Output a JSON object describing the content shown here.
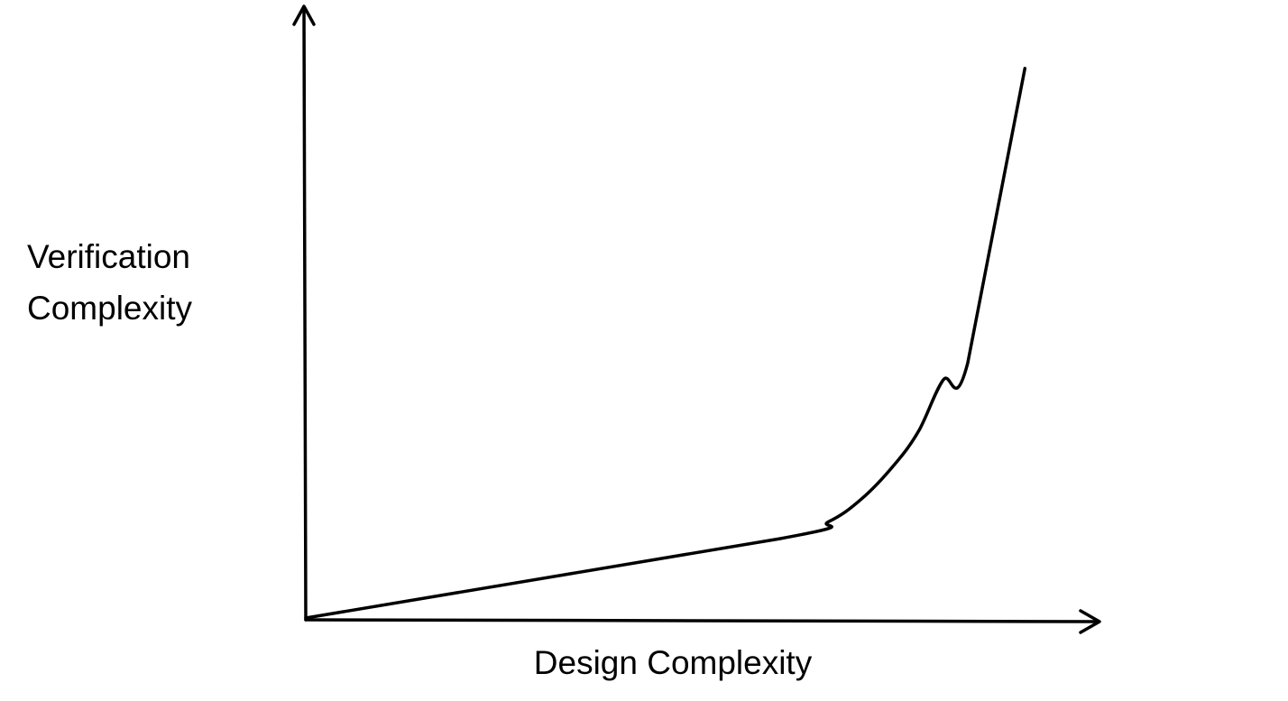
{
  "chart_data": {
    "type": "line",
    "title": "",
    "xlabel": "Design Complexity",
    "ylabel_lines": [
      "Verification",
      "Complexity"
    ],
    "grid": false,
    "legend": "none",
    "ticks": "none",
    "xlim": [
      0,
      1
    ],
    "ylim": [
      0,
      1
    ],
    "series": [
      {
        "x": [
          0.0,
          0.58,
          0.64,
          0.68,
          0.72,
          0.75,
          0.78,
          0.81,
          0.88
        ],
        "y": [
          0.0,
          0.14,
          0.17,
          0.21,
          0.27,
          0.33,
          0.42,
          0.45,
          0.97
        ]
      }
    ],
    "colors": {
      "line": "#000000",
      "axis": "#000000",
      "background": "#ffffff"
    }
  }
}
